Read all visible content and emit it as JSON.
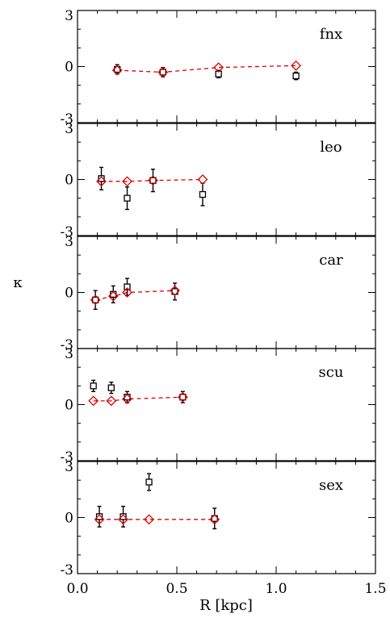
{
  "chart_data": {
    "type": "scatter",
    "xlabel": "R [kpc]",
    "ylabel": "κ",
    "xlim": [
      0.0,
      1.5
    ],
    "ylim": [
      -3,
      3
    ],
    "x_ticks": [
      "0.0",
      "0.5",
      "1.0",
      "1.5"
    ],
    "y_ticks": [
      "3",
      "0",
      "-3"
    ],
    "colors": {
      "observed": "#000000",
      "model": "#e00000"
    },
    "panels": [
      {
        "label": "fnx",
        "observed": {
          "x": [
            0.2,
            0.43,
            0.71,
            1.1
          ],
          "y": [
            -0.15,
            -0.3,
            -0.4,
            -0.5
          ],
          "err": [
            0.25,
            0.25,
            0.2,
            0.2
          ]
        },
        "model": {
          "x": [
            0.2,
            0.43,
            0.71,
            1.1
          ],
          "y": [
            -0.2,
            -0.3,
            -0.05,
            0.05
          ]
        }
      },
      {
        "label": "leo",
        "observed": {
          "x": [
            0.12,
            0.25,
            0.38,
            0.63
          ],
          "y": [
            0.05,
            -1.0,
            -0.05,
            -0.8
          ],
          "err": [
            0.6,
            0.6,
            0.6,
            0.6
          ]
        },
        "model": {
          "x": [
            0.12,
            0.25,
            0.38,
            0.63
          ],
          "y": [
            -0.1,
            -0.1,
            -0.05,
            0.0
          ]
        }
      },
      {
        "label": "car",
        "observed": {
          "x": [
            0.09,
            0.18,
            0.25,
            0.49
          ],
          "y": [
            -0.4,
            -0.1,
            0.3,
            0.05
          ],
          "err": [
            0.5,
            0.45,
            0.45,
            0.45
          ]
        },
        "model": {
          "x": [
            0.09,
            0.18,
            0.25,
            0.49
          ],
          "y": [
            -0.4,
            -0.2,
            0.0,
            0.1
          ]
        }
      },
      {
        "label": "scu",
        "observed": {
          "x": [
            0.08,
            0.17,
            0.25,
            0.53
          ],
          "y": [
            1.0,
            0.9,
            0.4,
            0.4
          ],
          "err": [
            0.3,
            0.3,
            0.3,
            0.3
          ]
        },
        "model": {
          "x": [
            0.08,
            0.17,
            0.25,
            0.53
          ],
          "y": [
            0.2,
            0.2,
            0.3,
            0.4
          ]
        }
      },
      {
        "label": "sex",
        "observed": {
          "x": [
            0.11,
            0.23,
            0.36,
            0.69
          ],
          "y": [
            0.05,
            0.05,
            1.9,
            -0.05
          ],
          "err": [
            0.55,
            0.55,
            0.45,
            0.55
          ]
        },
        "model": {
          "x": [
            0.11,
            0.23,
            0.36,
            0.69
          ],
          "y": [
            -0.1,
            -0.1,
            -0.1,
            -0.1
          ]
        }
      }
    ]
  }
}
